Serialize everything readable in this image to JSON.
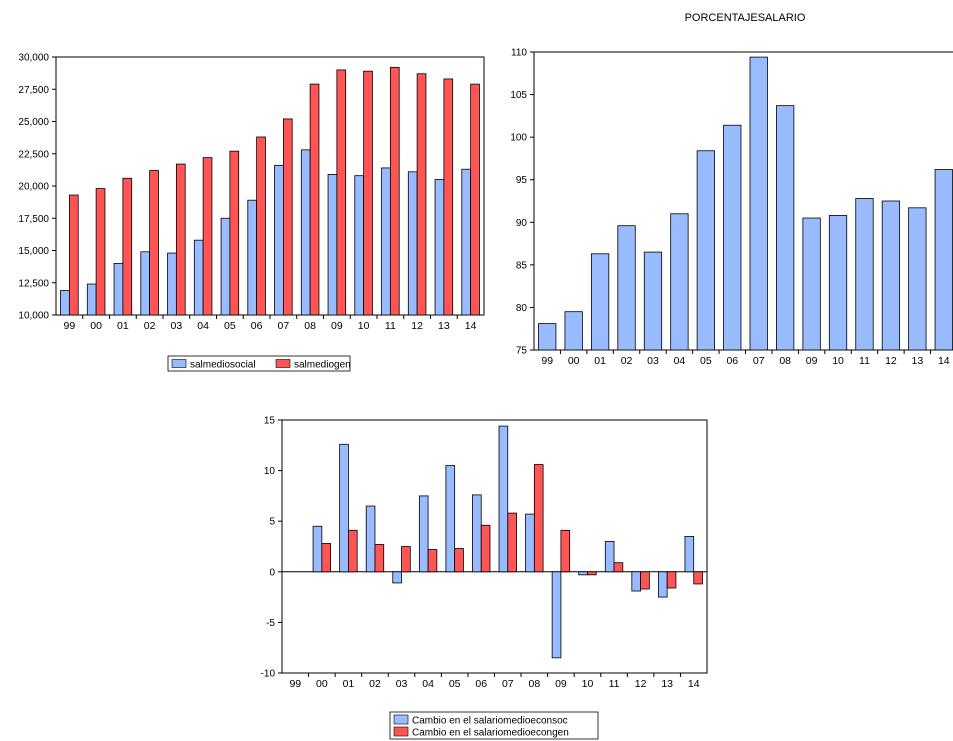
{
  "colors": {
    "blue": "#99bbff",
    "red": "#ff5555"
  },
  "chart_data": [
    {
      "type": "bar",
      "title": "",
      "categories": [
        "99",
        "00",
        "01",
        "02",
        "03",
        "04",
        "05",
        "06",
        "07",
        "08",
        "09",
        "10",
        "11",
        "12",
        "13",
        "14"
      ],
      "yticks": [
        "10,000",
        "12,500",
        "15,000",
        "17,500",
        "20,000",
        "22,500",
        "25,000",
        "27,500",
        "30,000"
      ],
      "ylim": [
        10000,
        30000
      ],
      "legend_position": "bottom",
      "series": [
        {
          "name": "salmediosocial",
          "color": "#99bbff",
          "values": [
            11900,
            12400,
            14000,
            14900,
            14800,
            15800,
            17500,
            18900,
            21600,
            22800,
            20900,
            20800,
            21400,
            21100,
            20500,
            21300
          ]
        },
        {
          "name": "salmediogen",
          "color": "#ff5555",
          "values": [
            19300,
            19800,
            20600,
            21200,
            21700,
            22200,
            22700,
            23800,
            25200,
            27900,
            29000,
            28900,
            29200,
            28700,
            28300,
            27900
          ]
        }
      ]
    },
    {
      "type": "bar",
      "title": "PORCENTAJESALARIO",
      "categories": [
        "99",
        "00",
        "01",
        "02",
        "03",
        "04",
        "05",
        "06",
        "07",
        "08",
        "09",
        "10",
        "11",
        "12",
        "13",
        "14"
      ],
      "yticks": [
        "75",
        "80",
        "85",
        "90",
        "95",
        "100",
        "105",
        "110"
      ],
      "ylim": [
        75,
        110
      ],
      "series": [
        {
          "color": "#99bbff",
          "values": [
            78.1,
            79.5,
            86.3,
            89.6,
            86.5,
            91.0,
            98.4,
            101.4,
            109.4,
            103.7,
            90.5,
            90.8,
            92.8,
            92.5,
            91.7,
            96.2
          ]
        }
      ]
    },
    {
      "type": "bar",
      "title": "",
      "categories": [
        "99",
        "00",
        "01",
        "02",
        "03",
        "04",
        "05",
        "06",
        "07",
        "08",
        "09",
        "10",
        "11",
        "12",
        "13",
        "14"
      ],
      "yticks": [
        "-10",
        "-5",
        "0",
        "5",
        "10",
        "15"
      ],
      "ylim": [
        -10,
        15
      ],
      "legend_position": "bottom",
      "series": [
        {
          "name": "Cambio en el salariomedioeconsoc",
          "color": "#99bbff",
          "values": [
            null,
            4.5,
            12.6,
            6.5,
            -1.1,
            7.5,
            10.5,
            7.6,
            14.4,
            5.7,
            -8.5,
            -0.3,
            3.0,
            -1.9,
            -2.5,
            3.5
          ]
        },
        {
          "name": "Cambio en el salariomedioecongen",
          "color": "#ff5555",
          "values": [
            null,
            2.8,
            4.1,
            2.7,
            2.5,
            2.2,
            2.3,
            4.6,
            5.8,
            10.6,
            4.1,
            -0.3,
            0.9,
            -1.7,
            -1.6,
            -1.2
          ]
        }
      ]
    }
  ]
}
